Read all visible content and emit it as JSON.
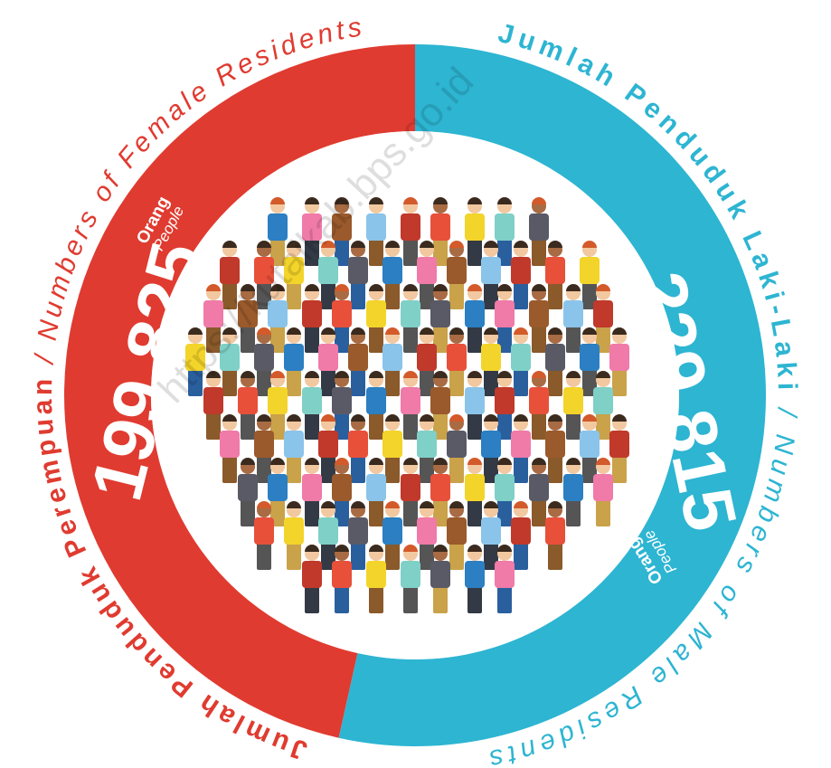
{
  "chart_data": {
    "type": "donut",
    "categories": [
      "Jumlah Penduduk Perempuan",
      "Jumlah Penduduk Laki-Laki"
    ],
    "categories_en": [
      "/ Numbers of Female Residents",
      "/ Numbers of Male Residents"
    ],
    "values": [
      199825,
      229815
    ],
    "value_labels": [
      "199.825",
      "229.815"
    ],
    "colors": [
      "#e03b30",
      "#2db5d2"
    ],
    "unit": "Orang",
    "unit_en": "People",
    "watermark": "https://kutaikab.bps.go.id"
  }
}
